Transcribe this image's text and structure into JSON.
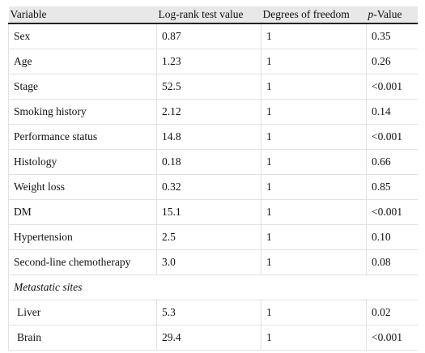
{
  "table": {
    "header": [
      "Variable",
      "Log-rank test value",
      "Degrees of freedom",
      [
        "p",
        "-Value"
      ]
    ],
    "rows": [
      [
        "Sex",
        "0.87",
        "1",
        "0.35"
      ],
      [
        "Age",
        "1.23",
        "1",
        "0.26"
      ],
      [
        "Stage",
        "52.5",
        "1",
        "<0.001"
      ],
      [
        "Smoking history",
        "2.12",
        "1",
        "0.14"
      ],
      [
        "Performance status",
        "14.8",
        "1",
        "<0.001"
      ],
      [
        "Histology",
        "0.18",
        "1",
        "0.66"
      ],
      [
        "Weight loss",
        "0.32",
        "1",
        "0.85"
      ],
      [
        "DM",
        "15.1",
        "1",
        "<0.001"
      ],
      [
        "Hypertension",
        "2.5",
        "1",
        "0.10"
      ],
      [
        "Second-line chemotherapy",
        "3.0",
        "1",
        "0.08"
      ],
      [
        "Metastatic sites"
      ],
      [
        "Liver",
        "5.3",
        "1",
        "0.02"
      ],
      [
        "Brain",
        "29.4",
        "1",
        "<0.001"
      ]
    ]
  }
}
